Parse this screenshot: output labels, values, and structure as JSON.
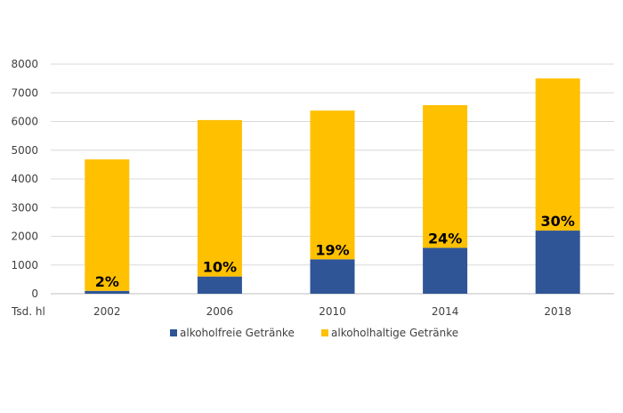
{
  "chart_data": {
    "type": "bar",
    "stacked": true,
    "unit_label": "Tsd. hl",
    "categories": [
      "2002",
      "2006",
      "2010",
      "2014",
      "2018"
    ],
    "series": [
      {
        "name": "alkoholfreie Getränke",
        "color": "#2f5597",
        "values": [
          100,
          600,
          1200,
          1600,
          2200
        ]
      },
      {
        "name": "alkoholhaltige Getränke",
        "color": "#ffc000",
        "values": [
          4580,
          5450,
          5180,
          4970,
          5300
        ]
      }
    ],
    "data_labels": [
      "2%",
      "10%",
      "19%",
      "24%",
      "30%"
    ],
    "yticks": [
      "0",
      "1000",
      "2000",
      "3000",
      "4000",
      "5000",
      "6000",
      "7000",
      "8000"
    ],
    "ylim": [
      0,
      8000
    ],
    "grid": true,
    "legend_position": "bottom"
  }
}
